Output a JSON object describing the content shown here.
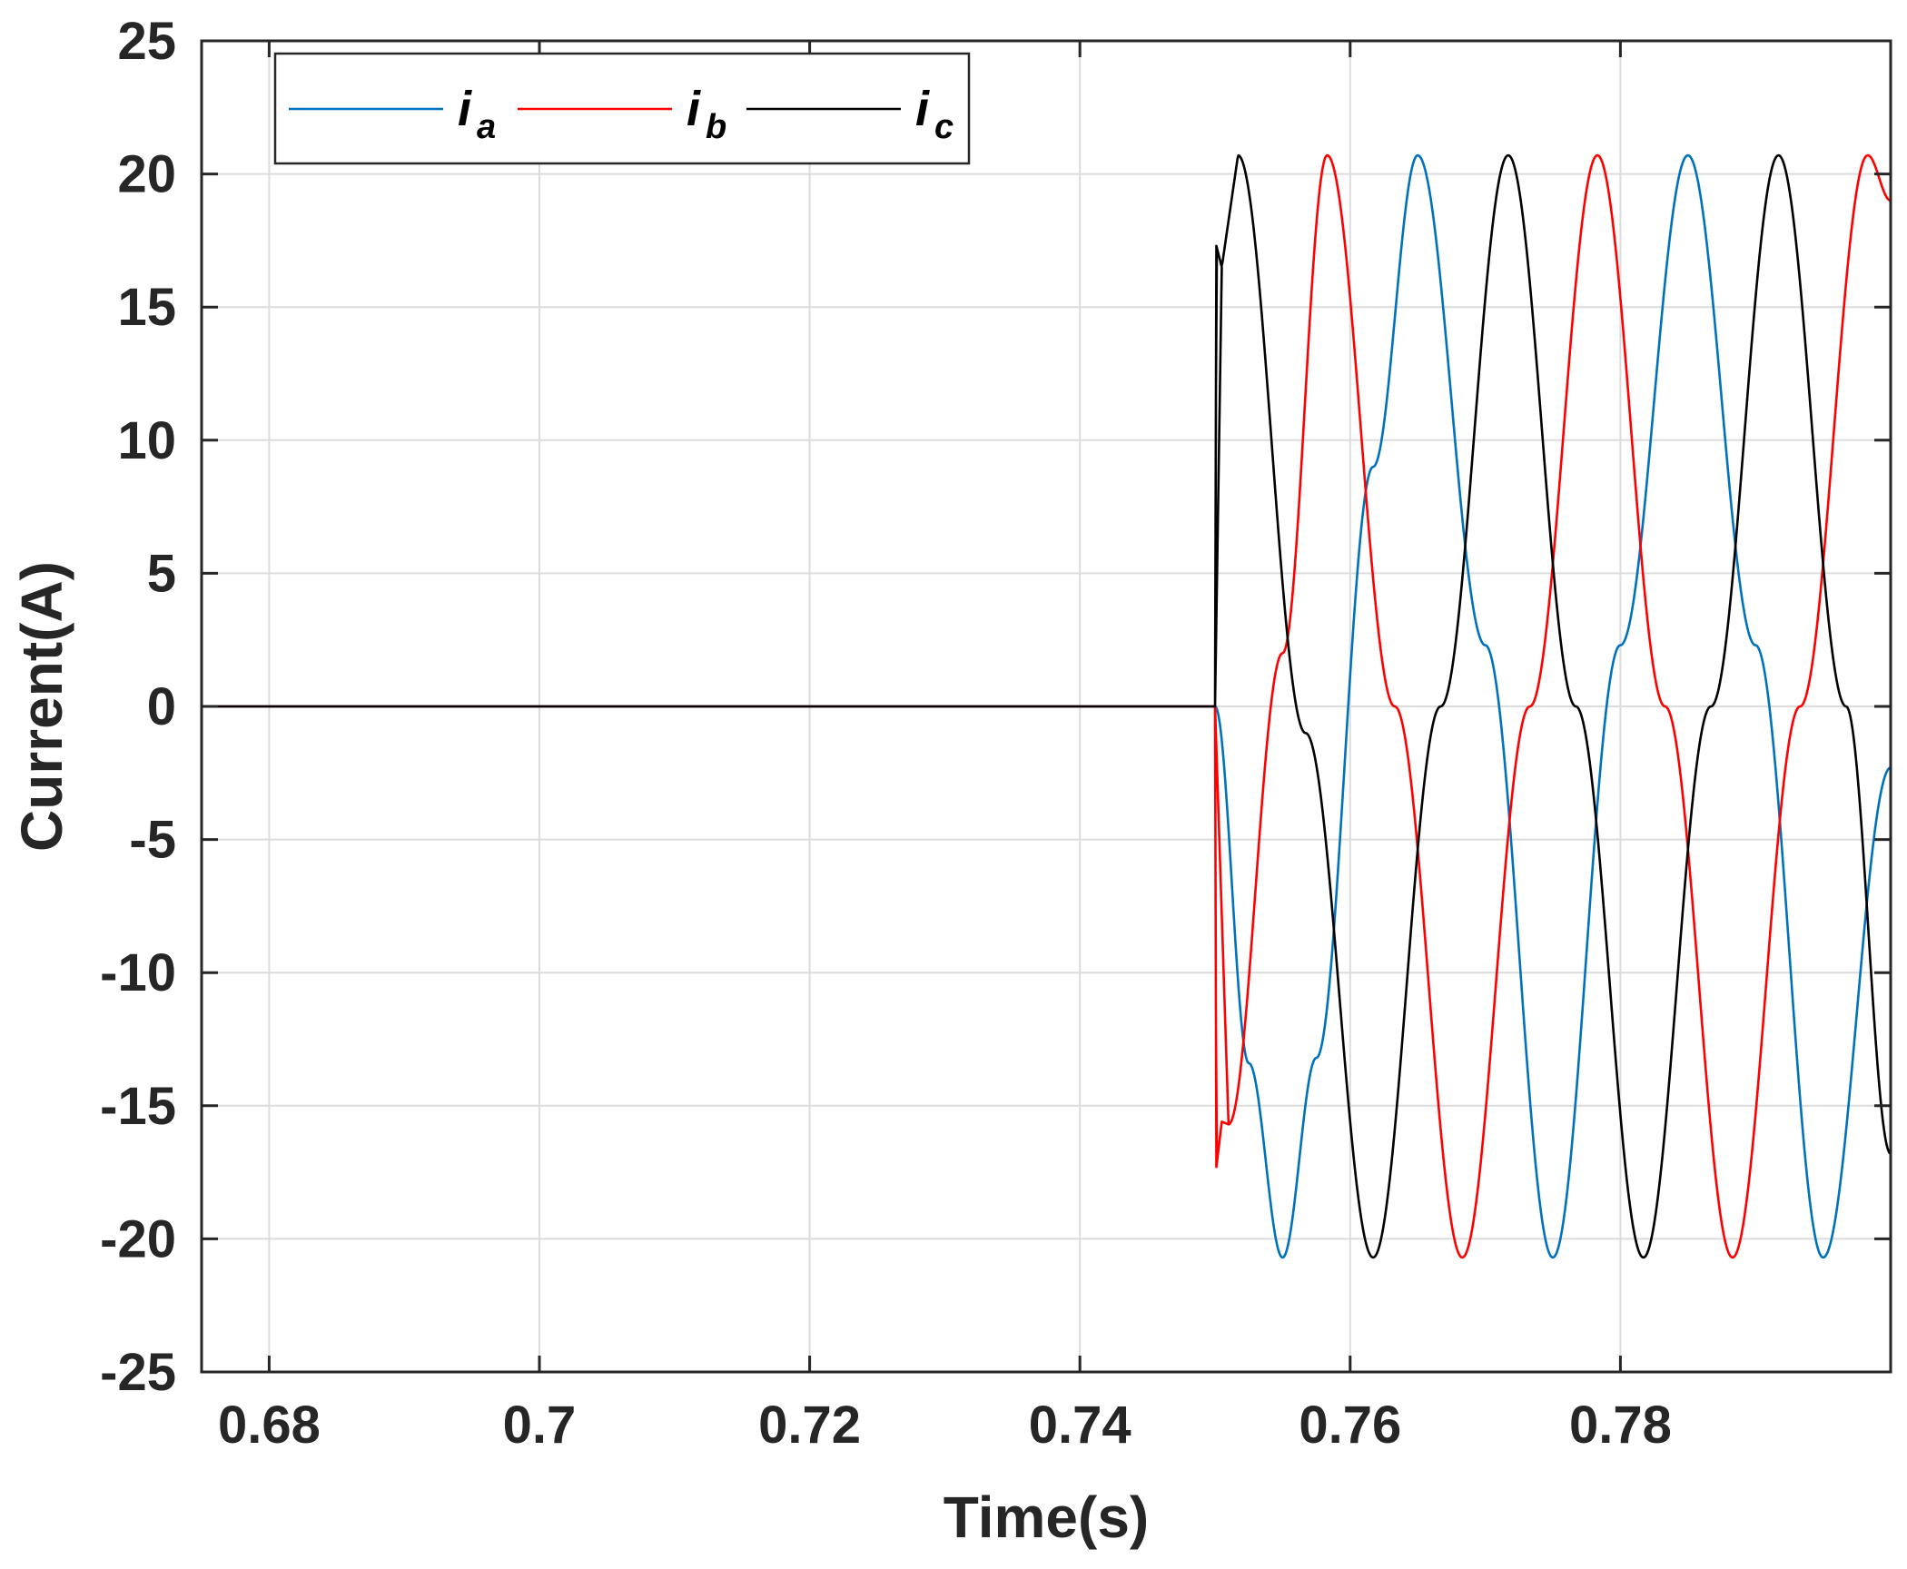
{
  "chart_data": {
    "type": "line",
    "title": "",
    "xlabel": "Time(s)",
    "ylabel": "Current(A)",
    "xlim": [
      0.675,
      0.8
    ],
    "ylim": [
      -25,
      25
    ],
    "xticks": [
      0.68,
      0.7,
      0.72,
      0.74,
      0.76,
      0.78
    ],
    "xtick_labels": [
      "0.68",
      "0.7",
      "0.72",
      "0.74",
      "0.76",
      "0.78"
    ],
    "yticks": [
      -25,
      -20,
      -15,
      -10,
      -5,
      0,
      5,
      10,
      15,
      20,
      25
    ],
    "ytick_labels": [
      "-25",
      "-20",
      "-15",
      "-10",
      "-5",
      "0",
      "5",
      "10",
      "15",
      "20",
      "25"
    ],
    "grid": true,
    "legend": {
      "placement": "top-left",
      "orientation": "horizontal"
    },
    "event": {
      "switch_on_time": 0.75,
      "steady_amplitude": 20.7,
      "frequency_hz": 50
    },
    "series": [
      {
        "name": "i_a",
        "label_main": "i",
        "label_sub": "a",
        "color": "#0072BD",
        "points": [
          [
            0.675,
            0
          ],
          [
            0.75,
            0
          ],
          [
            0.7525,
            -13.4
          ],
          [
            0.755,
            -20.7
          ],
          [
            0.7575,
            -13.2
          ],
          [
            0.7617,
            9.0
          ],
          [
            0.765,
            20.7
          ],
          [
            0.77,
            2.3
          ],
          [
            0.775,
            -20.7
          ],
          [
            0.78,
            2.3
          ],
          [
            0.785,
            20.7
          ],
          [
            0.79,
            2.3
          ],
          [
            0.795,
            -20.7
          ],
          [
            0.8,
            -2.3
          ]
        ]
      },
      {
        "name": "i_b",
        "label_main": "i",
        "label_sub": "b",
        "color": "#FF0000",
        "points": [
          [
            0.675,
            0
          ],
          [
            0.75,
            0
          ],
          [
            0.7501,
            -17.3
          ],
          [
            0.7505,
            -15.6
          ],
          [
            0.751,
            -15.7
          ],
          [
            0.755,
            2.0
          ],
          [
            0.7583,
            20.7
          ],
          [
            0.7633,
            0
          ],
          [
            0.7683,
            -20.7
          ],
          [
            0.7733,
            0
          ],
          [
            0.7783,
            20.7
          ],
          [
            0.7833,
            0
          ],
          [
            0.7883,
            -20.7
          ],
          [
            0.7933,
            0
          ],
          [
            0.7983,
            20.7
          ],
          [
            0.8,
            19.0
          ]
        ]
      },
      {
        "name": "i_c",
        "label_main": "i",
        "label_sub": "c",
        "color": "#000000",
        "points": [
          [
            0.675,
            0
          ],
          [
            0.75,
            0
          ],
          [
            0.7501,
            17.3
          ],
          [
            0.7505,
            16.5
          ],
          [
            0.7517,
            20.7
          ],
          [
            0.7567,
            -1.0
          ],
          [
            0.7617,
            -20.7
          ],
          [
            0.7667,
            0
          ],
          [
            0.7717,
            20.7
          ],
          [
            0.7767,
            0
          ],
          [
            0.7817,
            -20.7
          ],
          [
            0.7867,
            0
          ],
          [
            0.7917,
            20.7
          ],
          [
            0.7967,
            0
          ],
          [
            0.8,
            -16.8
          ]
        ]
      }
    ]
  }
}
